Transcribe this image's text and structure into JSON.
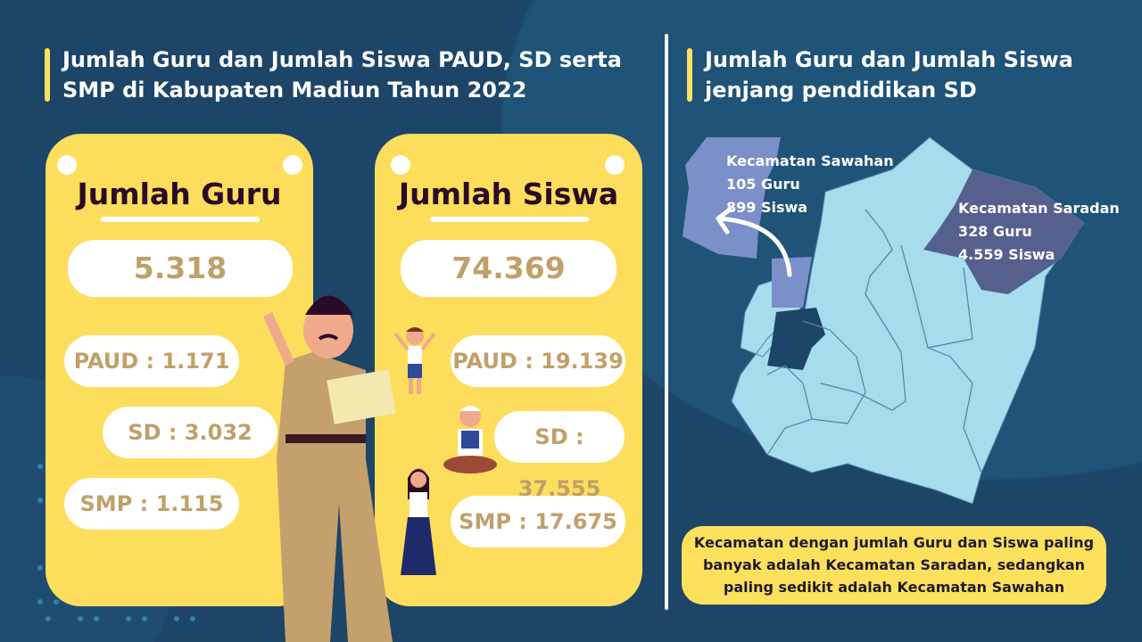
{
  "left": {
    "title_line1": "Jumlah Guru dan Jumlah Siswa PAUD, SD serta",
    "title_line2": "SMP di Kabupaten Madiun Tahun 2022",
    "guru": {
      "title": "Jumlah Guru",
      "total": "5.318",
      "paud": "PAUD : 1.171",
      "sd": "SD : 3.032",
      "smp": "SMP : 1.115"
    },
    "siswa": {
      "title": "Jumlah Siswa",
      "total": "74.369",
      "paud": "PAUD : 19.139",
      "sd": "SD : 37.555",
      "smp": "SMP : 17.675"
    }
  },
  "right": {
    "title_line1": "Jumlah Guru dan Jumlah Siswa",
    "title_line2": "jenjang pendidikan SD",
    "sawahan": {
      "name": "Kecamatan Sawahan",
      "guru": "105 Guru",
      "siswa": "899 Siswa"
    },
    "saradan": {
      "name": "Kecamatan Saradan",
      "guru": "328 Guru",
      "siswa": "4.559 Siswa"
    },
    "note_line1": "Kecamatan dengan jumlah Guru dan Siswa paling",
    "note_line2": "banyak adalah Kecamatan Saradan, sedangkan",
    "note_line3": "paling sedikit adalah Kecamatan Sawahan"
  },
  "colors": {
    "background": "#1c4568",
    "card": "#fddd5c",
    "value_text": "#c0a06a",
    "map_base": "#a6dcec",
    "sawahan": "#7b8fc8",
    "saradan": "#56608e"
  }
}
